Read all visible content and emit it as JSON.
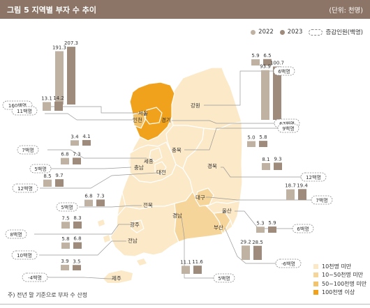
{
  "header": {
    "title": "그림 5  지역별 부자 수 추이",
    "unit": "(단위: 천명)"
  },
  "legend": {
    "y2022": "2022",
    "y2023": "2023",
    "change": "증감인원(백명)",
    "c2022": "#c0b2a2",
    "c2023": "#9e8b7c"
  },
  "region_legend": [
    {
      "label": "10천명 미만",
      "color": "#fae8c6"
    },
    {
      "label": "10~50천명 미만",
      "color": "#f6d59a"
    },
    {
      "label": "50~100천명 미만",
      "color": "#f3c36c"
    },
    {
      "label": "100천명 이상",
      "color": "#f1a21d"
    }
  ],
  "footnote": "주) 전년 말 기준으로 부자 수 산정",
  "chart_data": {
    "type": "bar",
    "series_names": [
      "2022",
      "2023"
    ],
    "regions": [
      {
        "name": "서울",
        "v2022": 191.3,
        "v2023": 207.3,
        "change": "160백명"
      },
      {
        "name": "인천",
        "v2022": 13.1,
        "v2023": 14.2,
        "change": "11백명"
      },
      {
        "name": "강원",
        "v2022": 5.9,
        "v2023": 6.5,
        "change": "6백명"
      },
      {
        "name": "경기",
        "v2022": 93.9,
        "v2023": 100.7,
        "change": "67백명"
      },
      {
        "name": "충북",
        "v2022": 5.0,
        "v2023": 5.8,
        "change": "9백명"
      },
      {
        "name": "세종",
        "v2022": 3.4,
        "v2023": 4.1,
        "change": "7백명"
      },
      {
        "name": "충남",
        "v2022": 6.8,
        "v2023": 7.3,
        "change": "5백명"
      },
      {
        "name": "대전",
        "v2022": 8.5,
        "v2023": 9.7,
        "change": "12백명"
      },
      {
        "name": "경북",
        "v2022": 8.1,
        "v2023": 9.3,
        "change": "12백명"
      },
      {
        "name": "대구",
        "v2022": 18.7,
        "v2023": 19.4,
        "change": "7백명"
      },
      {
        "name": "전북",
        "v2022": 6.8,
        "v2023": 7.3,
        "change": "5백명"
      },
      {
        "name": "울산",
        "v2022": 5.3,
        "v2023": 5.9,
        "change": "6백명"
      },
      {
        "name": "광주",
        "v2022": 7.5,
        "v2023": 8.3,
        "change": "8백명"
      },
      {
        "name": "부산",
        "v2022": 29.2,
        "v2023": 28.5,
        "change": "-6백명"
      },
      {
        "name": "전남",
        "v2022": 5.8,
        "v2023": 6.8,
        "change": "10백명"
      },
      {
        "name": "경남",
        "v2022": 11.1,
        "v2023": 11.6,
        "change": "5백명"
      },
      {
        "name": "제주",
        "v2022": 3.9,
        "v2023": 3.5,
        "change": "-4백명"
      }
    ]
  }
}
